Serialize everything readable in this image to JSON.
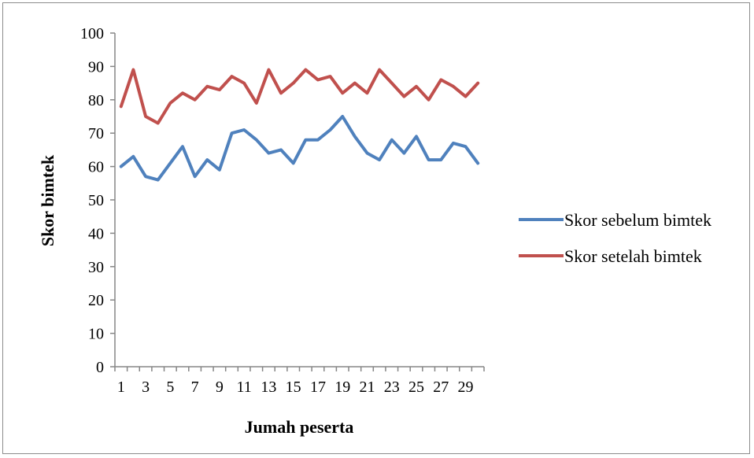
{
  "chart_data": {
    "type": "line",
    "title": "",
    "xlabel": "Jumah peserta",
    "ylabel": "Skor bimtek",
    "ylim": [
      0,
      100
    ],
    "yticks": [
      0,
      10,
      20,
      30,
      40,
      50,
      60,
      70,
      80,
      90,
      100
    ],
    "x": [
      1,
      2,
      3,
      4,
      5,
      6,
      7,
      8,
      9,
      10,
      11,
      12,
      13,
      14,
      15,
      16,
      17,
      18,
      19,
      20,
      21,
      22,
      23,
      24,
      25,
      26,
      27,
      28,
      29,
      30
    ],
    "xtick_labels": [
      "1",
      "3",
      "5",
      "7",
      "9",
      "11",
      "13",
      "15",
      "17",
      "19",
      "21",
      "23",
      "25",
      "27",
      "29"
    ],
    "grid": false,
    "legend_position": "right",
    "series": [
      {
        "name": "Skor sebelum bimtek",
        "color": "#4f81bd",
        "values": [
          60,
          63,
          57,
          56,
          61,
          66,
          57,
          62,
          59,
          70,
          71,
          68,
          64,
          65,
          61,
          68,
          68,
          71,
          75,
          69,
          64,
          62,
          68,
          64,
          69,
          62,
          62,
          67,
          66,
          61
        ]
      },
      {
        "name": "Skor setelah bimtek",
        "color": "#c0504d",
        "values": [
          78,
          89,
          75,
          73,
          79,
          82,
          80,
          84,
          83,
          87,
          85,
          79,
          89,
          82,
          85,
          89,
          86,
          87,
          82,
          85,
          82,
          89,
          85,
          81,
          84,
          80,
          86,
          84,
          81,
          85
        ]
      }
    ]
  }
}
